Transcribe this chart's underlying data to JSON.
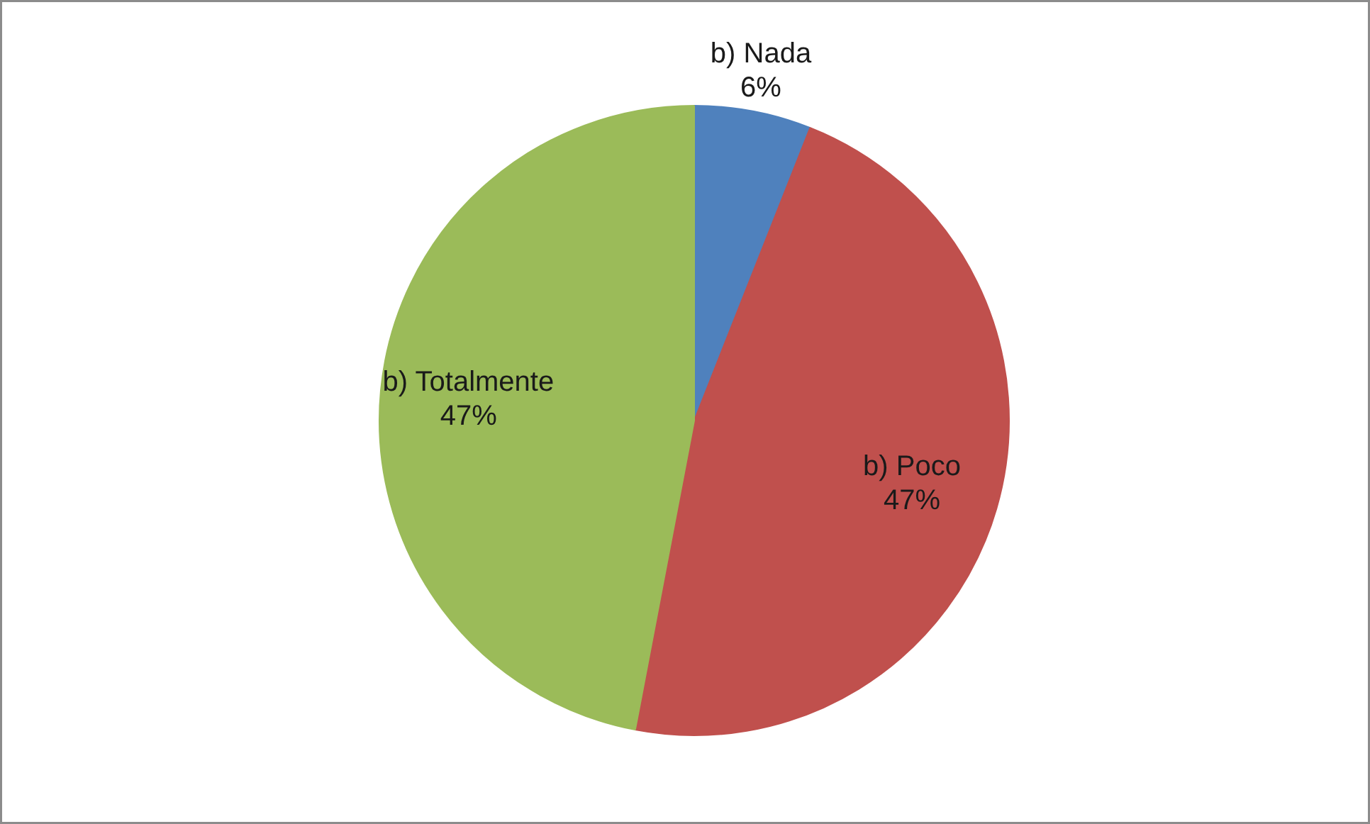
{
  "chart_data": {
    "type": "pie",
    "categories": [
      "b) Nada",
      "b) Poco",
      "b) Totalmente"
    ],
    "values": [
      6,
      47,
      47
    ],
    "colors": [
      "#4f81bd",
      "#c0504d",
      "#9bbb59"
    ],
    "value_labels": [
      "6%",
      "47%",
      "47%"
    ]
  }
}
